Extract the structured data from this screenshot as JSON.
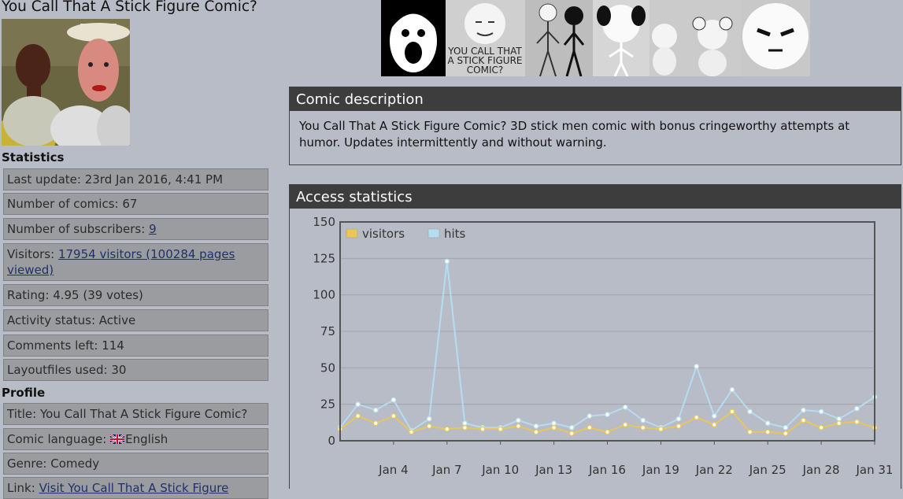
{
  "title": "You Call That A Stick Figure Comic?",
  "statistics": {
    "heading": "Statistics",
    "last_update_label": "Last update:",
    "last_update": "23rd Jan 2016, 4:41 PM",
    "num_comics_label": "Number of comics:",
    "num_comics": "67",
    "num_subscribers_label": "Number of subscribers:",
    "num_subscribers": "9",
    "visitors_label": "Visitors:",
    "visitors_link_1": "17954 visitors (100284 pages",
    "visitors_link_2": "viewed)",
    "rating_label": "Rating:",
    "rating": "4.95 (39 votes)",
    "activity_label": "Activity status:",
    "activity": "Active",
    "comments_label": "Comments left:",
    "comments": "114",
    "layoutfiles_label": "Layoutfiles used:",
    "layoutfiles": "30"
  },
  "profile": {
    "heading": "Profile",
    "title_label": "Title:",
    "title": "You Call That A Stick Figure Comic?",
    "language_label": "Comic language:",
    "language": "English",
    "genre_label": "Genre:",
    "genre": "Comedy",
    "link_label": "Link:",
    "link": "Visit You Call That A Stick Figure"
  },
  "banner": {
    "text_lines": [
      "YOU CALL THAT",
      "A STICK FIGURE",
      "COMIC?"
    ]
  },
  "description": {
    "heading": "Comic description",
    "text_1": "You Call That A Stick Figure Comic? 3D stick men comic with bonus cringeworthy attempts at",
    "text_2": "humor. Updates intermittently and without warning."
  },
  "access_stats": {
    "heading": "Access statistics"
  },
  "chart_data": {
    "type": "line",
    "title": "",
    "xlabel": "",
    "ylabel": "",
    "ylim": [
      0,
      150
    ],
    "yticks": [
      0,
      25,
      50,
      75,
      100,
      125,
      150
    ],
    "x_tick_labels": [
      "Jan 4",
      "Jan 7",
      "Jan 10",
      "Jan 13",
      "Jan 16",
      "Jan 19",
      "Jan 22",
      "Jan 25",
      "Jan 28",
      "Jan 31"
    ],
    "x_tick_days": [
      4,
      7,
      10,
      13,
      16,
      19,
      22,
      25,
      28,
      31
    ],
    "x": [
      1,
      2,
      3,
      4,
      5,
      6,
      7,
      8,
      9,
      10,
      11,
      12,
      13,
      14,
      15,
      16,
      17,
      18,
      19,
      20,
      21,
      22,
      23,
      24,
      25,
      26,
      27,
      28,
      29,
      30,
      31
    ],
    "legend_position": "top-left",
    "grid": true,
    "series": [
      {
        "name": "visitors",
        "color": "#e8c65a",
        "values": [
          8,
          17,
          12,
          17,
          6,
          10,
          8,
          9,
          8,
          8,
          10,
          6,
          9,
          5,
          9,
          6,
          11,
          9,
          8,
          10,
          16,
          11,
          20,
          6,
          6,
          5,
          14,
          9,
          12,
          13,
          9
        ]
      },
      {
        "name": "hits",
        "color": "#b6dcf2",
        "values": [
          9,
          25,
          21,
          28,
          7,
          15,
          123,
          12,
          9,
          9,
          14,
          10,
          12,
          9,
          17,
          18,
          23,
          14,
          9,
          15,
          51,
          17,
          35,
          20,
          12,
          9,
          21,
          20,
          15,
          22,
          30
        ]
      }
    ]
  },
  "colors": {
    "background": "#b8bcc6",
    "panel_header": "#3d3d3d",
    "stat_box": "#9a9c9f",
    "link": "#20306a"
  }
}
